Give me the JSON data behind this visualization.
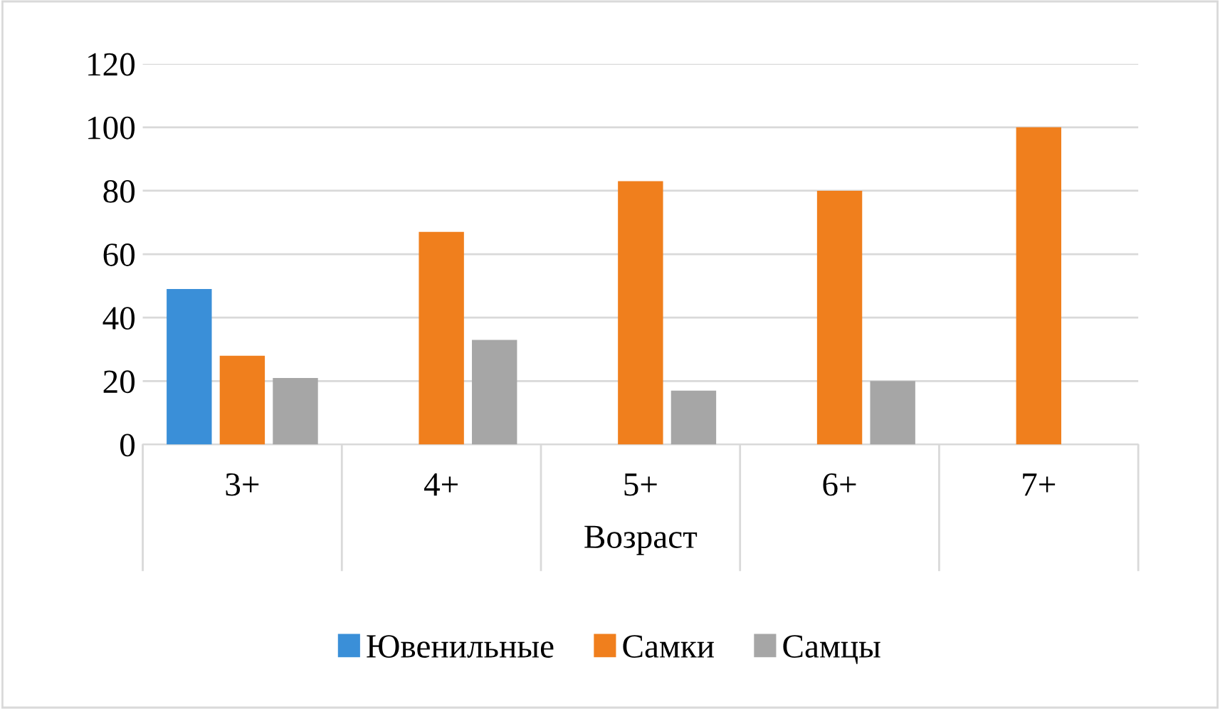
{
  "chart_data": {
    "type": "bar",
    "xlabel": "Возраст",
    "categories": [
      "3+",
      "4+",
      "5+",
      "6+",
      "7+"
    ],
    "series": [
      {
        "name": "Ювенильные",
        "color": "#3a8fd8",
        "values": [
          49,
          null,
          null,
          null,
          null
        ]
      },
      {
        "name": "Самки",
        "color": "#f07f1d",
        "values": [
          28,
          67,
          83,
          80,
          100
        ]
      },
      {
        "name": "Самцы",
        "color": "#a6a6a6",
        "values": [
          21,
          33,
          17,
          20,
          null
        ]
      }
    ],
    "ylim": [
      0,
      120
    ],
    "yticks": [
      0,
      20,
      40,
      60,
      80,
      100,
      120
    ],
    "grid": "y",
    "legend": "bottom"
  }
}
